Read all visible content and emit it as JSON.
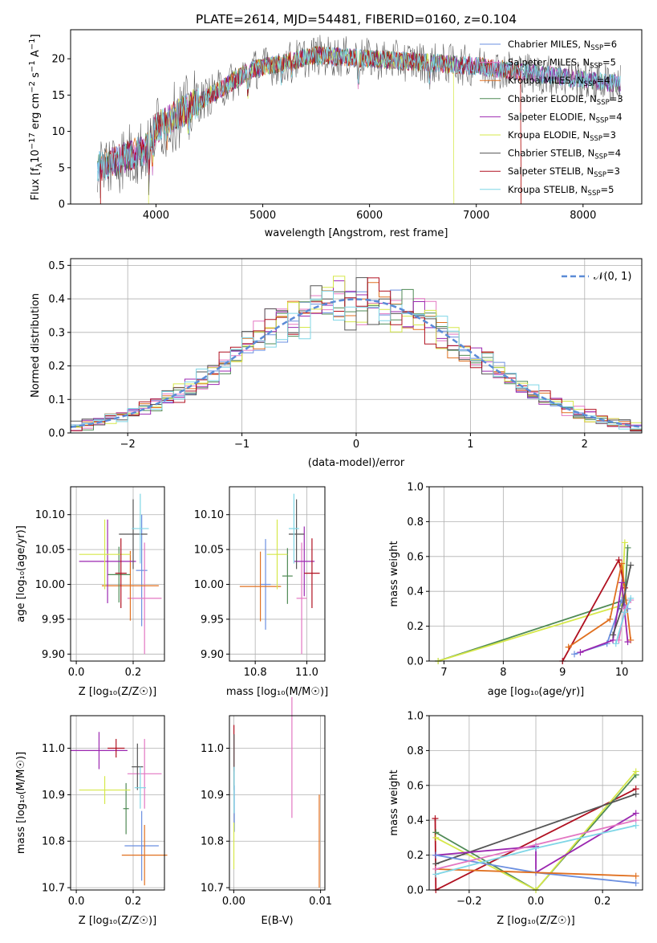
{
  "colors": {
    "chabrier_miles": "#6b8fe0",
    "salpeter_miles": "#e377c2",
    "kroupa_miles": "#e07020",
    "chabrier_elodie": "#4f8a55",
    "salpeter_elodie": "#9b27b0",
    "kroupa_elodie": "#d6e84a",
    "chabrier_stelib": "#555555",
    "salpeter_stelib": "#b01020",
    "kroupa_stelib": "#7fd6e6",
    "normal_curve": "#5b8bd6"
  },
  "models": [
    {
      "label": "Chabrier MILES, N",
      "sub": "SSP",
      "count": "=6",
      "color": "#6b8fe0"
    },
    {
      "label": "Salpeter MILES, N",
      "sub": "SSP",
      "count": "=5",
      "color": "#e377c2"
    },
    {
      "label": "Kroupa MILES, N",
      "sub": "SSP",
      "count": "=4",
      "color": "#e07020"
    },
    {
      "label": "Chabrier ELODIE, N",
      "sub": "SSP",
      "count": "=3",
      "color": "#4f8a55"
    },
    {
      "label": "Salpeter ELODIE, N",
      "sub": "SSP",
      "count": "=4",
      "color": "#9b27b0"
    },
    {
      "label": "Kroupa ELODIE, N",
      "sub": "SSP",
      "count": "=3",
      "color": "#d6e84a"
    },
    {
      "label": "Chabrier STELIB, N",
      "sub": "SSP",
      "count": "=4",
      "color": "#555555"
    },
    {
      "label": "Salpeter STELIB, N",
      "sub": "SSP",
      "count": "=3",
      "color": "#b01020"
    },
    {
      "label": "Kroupa STELIB, N",
      "sub": "SSP",
      "count": "=5",
      "color": "#7fd6e6"
    }
  ],
  "chart_data": [
    {
      "type": "line",
      "title": "PLATE=2614, MJD=54481, FIBERID=0160, z=0.104",
      "xlabel": "wavelength [Angstrom, rest frame]",
      "ylabel_parts": {
        "a": "Flux [f",
        "b": "λ",
        "c": "10",
        "d": "−17",
        "e": " erg cm",
        "f": "−2",
        "g": " s",
        "h": "−1",
        "i": " A",
        "j": "−1",
        "k": "]"
      },
      "xlim": [
        3200,
        8550
      ],
      "ylim": [
        0,
        24
      ],
      "xticks": [
        "4000",
        "5000",
        "6000",
        "7000",
        "8000"
      ],
      "yticks": [
        "0",
        "5",
        "10",
        "15",
        "20"
      ],
      "xtick_values": [
        4000,
        5000,
        6000,
        7000,
        8000
      ],
      "ytick_values": [
        0,
        5,
        10,
        15,
        20
      ],
      "spectrum_range": [
        3450,
        8350
      ],
      "dropoffs": [
        {
          "model": 2,
          "start": 3480,
          "end": 7420
        },
        {
          "model": 5,
          "start": 3930,
          "end": 6790
        },
        {
          "model": 7,
          "start": 3480,
          "end": 7420
        }
      ]
    },
    {
      "type": "bar",
      "xlabel": "(data-model)/error",
      "ylabel": "Normed distribution",
      "xlim": [
        -2.5,
        2.5
      ],
      "ylim": [
        0,
        0.52
      ],
      "xticks": [
        "−2",
        "−1",
        "0",
        "1",
        "2"
      ],
      "yticks": [
        "0.0",
        "0.1",
        "0.2",
        "0.3",
        "0.4",
        "0.5"
      ],
      "xtick_values": [
        -2,
        -1,
        0,
        1,
        2
      ],
      "ytick_values": [
        0,
        0.1,
        0.2,
        0.3,
        0.4,
        0.5
      ],
      "bin_width": 0.1,
      "legend_label": "𝒩(0, 1)",
      "legend_position": "top-right"
    },
    {
      "type": "scatter",
      "xlabel": "Z [log₁₀(Z/Z☉)]",
      "ylabel": "age  [log₁₀(age/yr)]",
      "xlim": [
        -0.02,
        0.31
      ],
      "ylim": [
        9.89,
        10.14
      ],
      "xticks": [
        "0.0",
        "0.2"
      ],
      "yticks": [
        "9.90",
        "9.95",
        "10.00",
        "10.05",
        "10.10"
      ],
      "xtick_values": [
        0.0,
        0.2
      ],
      "ytick_values": [
        9.9,
        9.95,
        10.0,
        10.05,
        10.1
      ],
      "points": [
        {
          "model": 0,
          "x": 0.23,
          "y": 10.02,
          "xe": 0.02,
          "ye": 0.08
        },
        {
          "model": 1,
          "x": 0.24,
          "y": 9.98,
          "xe": 0.06,
          "ye": 0.08
        },
        {
          "model": 2,
          "x": 0.19,
          "y": 9.998,
          "xe": 0.1,
          "ye": 0.05
        },
        {
          "model": 3,
          "x": 0.15,
          "y": 10.014,
          "xe": 0.04,
          "ye": 0.04
        },
        {
          "model": 4,
          "x": 0.11,
          "y": 10.033,
          "xe": 0.1,
          "ye": 0.06
        },
        {
          "model": 5,
          "x": 0.1,
          "y": 10.043,
          "xe": 0.09,
          "ye": 0.05
        },
        {
          "model": 6,
          "x": 0.2,
          "y": 10.072,
          "xe": 0.05,
          "ye": 0.05
        },
        {
          "model": 7,
          "x": 0.157,
          "y": 10.016,
          "xe": 0.02,
          "ye": 0.05
        },
        {
          "model": 8,
          "x": 0.225,
          "y": 10.08,
          "xe": 0.03,
          "ye": 0.05
        }
      ]
    },
    {
      "type": "scatter",
      "xlabel": "mass [log₁₀(M/M☉)]",
      "ylabel": "",
      "xlim": [
        10.7,
        11.07
      ],
      "ylim": [
        9.89,
        10.14
      ],
      "xticks": [
        "10.8",
        "11.0"
      ],
      "yticks": [
        "9.90",
        "9.95",
        "10.00",
        "10.05",
        "10.10"
      ],
      "xtick_values": [
        10.8,
        11.0
      ],
      "ytick_values": [
        9.9,
        9.95,
        10.0,
        10.05,
        10.1
      ],
      "points": [
        {
          "model": 0,
          "x": 10.84,
          "y": 10.0,
          "xe": 0.02,
          "ye": 0.065
        },
        {
          "model": 1,
          "x": 10.98,
          "y": 9.98,
          "xe": 0.02,
          "ye": 0.08
        },
        {
          "model": 2,
          "x": 10.82,
          "y": 9.997,
          "xe": 0.08,
          "ye": 0.05
        },
        {
          "model": 3,
          "x": 10.925,
          "y": 10.012,
          "xe": 0.02,
          "ye": 0.04
        },
        {
          "model": 4,
          "x": 10.99,
          "y": 10.033,
          "xe": 0.04,
          "ye": 0.05
        },
        {
          "model": 5,
          "x": 10.885,
          "y": 10.043,
          "xe": 0.04,
          "ye": 0.05
        },
        {
          "model": 6,
          "x": 10.96,
          "y": 10.072,
          "xe": 0.03,
          "ye": 0.05
        },
        {
          "model": 7,
          "x": 11.02,
          "y": 10.016,
          "xe": 0.03,
          "ye": 0.05
        },
        {
          "model": 8,
          "x": 10.95,
          "y": 10.08,
          "xe": 0.02,
          "ye": 0.05
        }
      ]
    },
    {
      "type": "line",
      "xlabel": "age  [log₁₀(age/yr)]",
      "ylabel": "mass weight",
      "xlim": [
        6.75,
        10.35
      ],
      "ylim": [
        0,
        1.0
      ],
      "xticks": [
        "7",
        "8",
        "9",
        "10"
      ],
      "yticks": [
        "0.0",
        "0.2",
        "0.4",
        "0.6",
        "0.8",
        "1.0"
      ],
      "xtick_values": [
        7,
        8,
        9,
        10
      ],
      "ytick_values": [
        0,
        0.2,
        0.4,
        0.6,
        0.8,
        1.0
      ],
      "series": [
        {
          "model": 3,
          "x": [
            6.9,
            10.05,
            10.1
          ],
          "y": [
            0.0,
            0.35,
            0.65
          ]
        },
        {
          "model": 5,
          "x": [
            6.9,
            10.0,
            10.05
          ],
          "y": [
            0.0,
            0.32,
            0.68
          ]
        },
        {
          "model": 7,
          "x": [
            9.0,
            9.95,
            10.05
          ],
          "y": [
            0.0,
            0.58,
            0.42
          ]
        },
        {
          "model": 2,
          "x": [
            9.1,
            9.8,
            10.0,
            10.15
          ],
          "y": [
            0.08,
            0.24,
            0.56,
            0.12
          ]
        },
        {
          "model": 0,
          "x": [
            9.2,
            9.75,
            10.0,
            10.1
          ],
          "y": [
            0.04,
            0.1,
            0.35,
            0.3
          ]
        },
        {
          "model": 4,
          "x": [
            9.3,
            9.85,
            10.0,
            10.1
          ],
          "y": [
            0.05,
            0.12,
            0.45,
            0.11
          ]
        },
        {
          "model": 6,
          "x": [
            9.85,
            10.0,
            10.15
          ],
          "y": [
            0.15,
            0.3,
            0.55
          ]
        },
        {
          "model": 1,
          "x": [
            9.95,
            10.05,
            10.15
          ],
          "y": [
            0.12,
            0.3,
            0.35
          ]
        },
        {
          "model": 8,
          "x": [
            9.9,
            10.05,
            10.15
          ],
          "y": [
            0.1,
            0.28,
            0.36
          ]
        }
      ]
    },
    {
      "type": "scatter",
      "xlabel": "Z [log₁₀(Z/Z☉)]",
      "ylabel": "mass [log₁₀(M/M☉)]",
      "xlim": [
        -0.02,
        0.31
      ],
      "ylim": [
        10.695,
        11.07
      ],
      "xticks": [
        "0.0",
        "0.2"
      ],
      "yticks": [
        "10.7",
        "10.8",
        "10.9",
        "11.0"
      ],
      "xtick_values": [
        0.0,
        0.2
      ],
      "ytick_values": [
        10.7,
        10.8,
        10.9,
        11.0
      ],
      "points": [
        {
          "model": 0,
          "x": 0.23,
          "y": 10.79,
          "xe": 0.06,
          "ye": 0.075
        },
        {
          "model": 1,
          "x": 0.24,
          "y": 10.945,
          "xe": 0.06,
          "ye": 0.075
        },
        {
          "model": 2,
          "x": 0.24,
          "y": 10.77,
          "xe": 0.08,
          "ye": 0.065
        },
        {
          "model": 3,
          "x": 0.175,
          "y": 10.87,
          "xe": 0.01,
          "ye": 0.055
        },
        {
          "model": 4,
          "x": 0.08,
          "y": 10.995,
          "xe": 0.1,
          "ye": 0.04
        },
        {
          "model": 5,
          "x": 0.1,
          "y": 10.91,
          "xe": 0.09,
          "ye": 0.03
        },
        {
          "model": 6,
          "x": 0.215,
          "y": 10.96,
          "xe": 0.02,
          "ye": 0.05
        },
        {
          "model": 7,
          "x": 0.14,
          "y": 11.0,
          "xe": 0.03,
          "ye": 0.02
        },
        {
          "model": 8,
          "x": 0.225,
          "y": 10.915,
          "xe": 0.02,
          "ye": 0.045
        }
      ]
    },
    {
      "type": "scatter",
      "xlabel": "E(B-V)",
      "ylabel": "",
      "xlim": [
        -0.0005,
        0.0105
      ],
      "ylim": [
        10.695,
        11.07
      ],
      "xticks": [
        "0.00",
        "0.01"
      ],
      "yticks": [
        "10.7",
        "10.8",
        "10.9",
        "11.0"
      ],
      "xtick_values": [
        0.0,
        0.01
      ],
      "ytick_values": [
        10.7,
        10.8,
        10.9,
        11.0
      ],
      "points": [
        {
          "model": 7,
          "x": 2e-05,
          "y": 11.0,
          "ye": 0.05
        },
        {
          "model": 6,
          "x": 3e-05,
          "y": 10.97,
          "ye": 0.06
        },
        {
          "model": 0,
          "x": 6e-05,
          "y": 10.87,
          "ye": 0.05
        },
        {
          "model": 8,
          "x": 4e-05,
          "y": 10.91,
          "ye": 0.05
        },
        {
          "model": 5,
          "x": 1e-05,
          "y": 10.79,
          "ye": 0.05
        },
        {
          "model": 1,
          "x": 0.0067,
          "y": 10.98,
          "ye": 0.13
        },
        {
          "model": 2,
          "x": 0.00985,
          "y": 10.8,
          "ye": 0.1
        }
      ]
    },
    {
      "type": "line",
      "xlabel": "Z [log₁₀(Z/Z☉)]",
      "ylabel": "mass weight",
      "xlim": [
        -0.32,
        0.32
      ],
      "ylim": [
        0,
        1.0
      ],
      "xticks": [
        "−0.2",
        "0.0",
        "0.2"
      ],
      "yticks": [
        "0.0",
        "0.2",
        "0.4",
        "0.6",
        "0.8",
        "1.0"
      ],
      "xtick_values": [
        -0.2,
        0.0,
        0.2
      ],
      "ytick_values": [
        0,
        0.2,
        0.4,
        0.6,
        0.8,
        1.0
      ],
      "series": [
        {
          "model": 7,
          "x": [
            -0.302,
            -0.3,
            0.3
          ],
          "y": [
            0.41,
            0.0,
            0.58
          ]
        },
        {
          "model": 3,
          "x": [
            -0.3,
            0.0,
            0.3
          ],
          "y": [
            0.33,
            0.0,
            0.66
          ]
        },
        {
          "model": 5,
          "x": [
            -0.3,
            0.0,
            0.3
          ],
          "y": [
            0.3,
            0.0,
            0.68
          ]
        },
        {
          "model": 6,
          "x": [
            -0.3,
            0.3
          ],
          "y": [
            0.15,
            0.55
          ]
        },
        {
          "model": 4,
          "x": [
            -0.3,
            0.0,
            0.0,
            0.3
          ],
          "y": [
            0.2,
            0.25,
            0.1,
            0.44
          ]
        },
        {
          "model": 0,
          "x": [
            -0.3,
            0.0,
            0.3
          ],
          "y": [
            0.2,
            0.1,
            0.04
          ]
        },
        {
          "model": 2,
          "x": [
            -0.3,
            0.3
          ],
          "y": [
            0.12,
            0.08
          ]
        },
        {
          "model": 1,
          "x": [
            -0.3,
            0.3
          ],
          "y": [
            0.12,
            0.4
          ]
        },
        {
          "model": 8,
          "x": [
            -0.3,
            0.0,
            0.3
          ],
          "y": [
            0.09,
            0.24,
            0.37
          ]
        }
      ]
    }
  ]
}
